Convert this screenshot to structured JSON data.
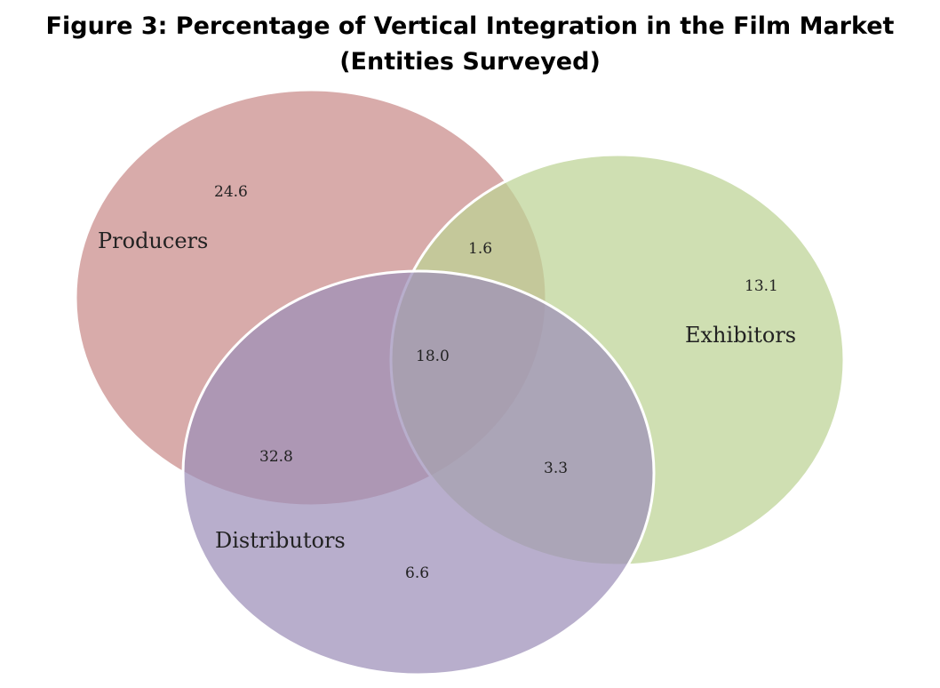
{
  "figure": {
    "title_line1": "Figure 3: Percentage of Vertical Integration in the Film Market",
    "title_line2": "(Entities Surveyed)"
  },
  "colors": {
    "producers": "#c98a89",
    "exhibitors": "#bcd394",
    "distributors": "#9d8fb9",
    "outline": "#ffffff"
  },
  "sets": {
    "producers": "Producers",
    "exhibitors": "Exhibitors",
    "distributors": "Distributors"
  },
  "regions": {
    "producers_only": "24.6",
    "exhibitors_only": "13.1",
    "distributors_only": "6.6",
    "producers_exhibitors": "1.6",
    "producers_distributors": "32.8",
    "exhibitors_distributors": "3.3",
    "all_three": "18.0"
  }
}
